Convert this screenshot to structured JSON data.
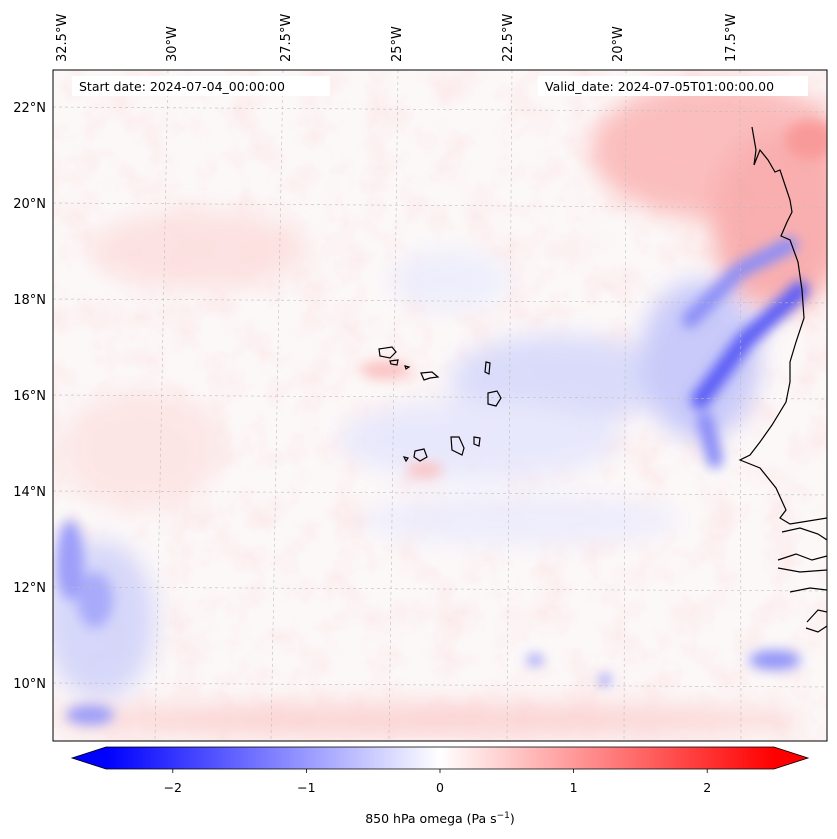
{
  "map": {
    "lon_labels": [
      "32.5°W",
      "30°W",
      "27.5°W",
      "25°W",
      "22.5°W",
      "20°W",
      "17.5°W"
    ],
    "lat_labels": [
      "22°N",
      "20°N",
      "18°N",
      "16°N",
      "14°N",
      "12°N",
      "10°N"
    ],
    "start_date": "Start date: 2024-07-04_00:00:00",
    "valid_date": "Valid_date: 2024-07-05T01:00:00.00",
    "field": "850 hPa omega",
    "colormap": "bwr"
  },
  "colorbar": {
    "ticks": [
      "−2",
      "−1",
      "0",
      "1",
      "2"
    ],
    "tick_values": [
      -2,
      -1,
      0,
      1,
      2
    ],
    "range": [
      -2.5,
      2.5
    ],
    "label_main": "850 hPa omega (Pa s",
    "label_exp": "−1",
    "label_close": ")",
    "colors": {
      "negative": "#0000ff",
      "zero": "#ffffff",
      "positive": "#ff0000"
    }
  }
}
